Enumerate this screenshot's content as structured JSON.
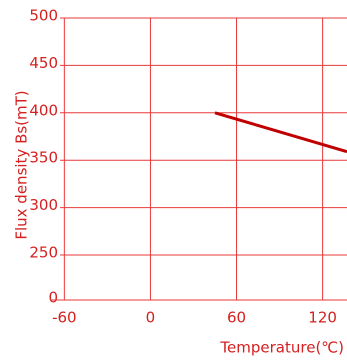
{
  "chart_data": {
    "type": "line",
    "x_label": "Temperature(℃)",
    "y_label": "Flux density Bs(mT)",
    "x": [
      45,
      137
    ],
    "series": [
      {
        "name": "Bs",
        "color": "#c00000",
        "values": [
          400,
          359
        ]
      }
    ],
    "xlim": [
      -70,
      137
    ],
    "xticks": [
      -60,
      0,
      60,
      120
    ],
    "ylim": [
      0,
      500
    ],
    "yticks": [
      0,
      250,
      300,
      350,
      400,
      450,
      500
    ],
    "grid": true
  }
}
